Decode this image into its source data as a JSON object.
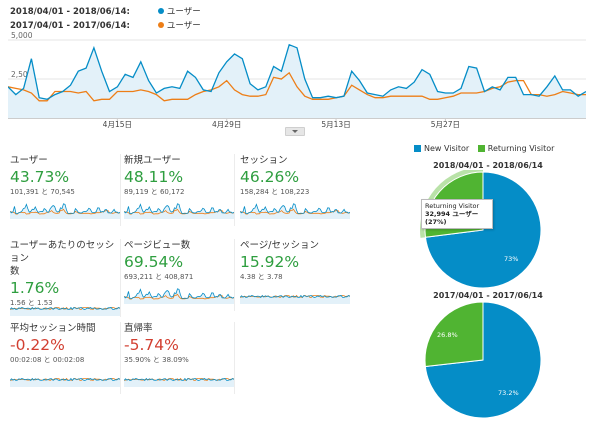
{
  "colors": {
    "current": "#058dc7",
    "previous": "#ed7e17",
    "returning": "#50b432",
    "pct_up": "#2e9e3f",
    "pct_down": "#d23f31"
  },
  "legend": [
    {
      "range": "2018/04/01 - 2018/06/14:",
      "label": "ユーザー",
      "color": "#058dc7"
    },
    {
      "range": "2017/04/01 - 2017/06/14:",
      "label": "ユーザー",
      "color": "#ed7e17"
    }
  ],
  "chart_data": [
    {
      "type": "line",
      "yticks": [
        "5,000",
        "2,500"
      ],
      "ylim": [
        0,
        5000
      ],
      "xticks": [
        "4月15日",
        "4月29日",
        "5月13日",
        "5月27日"
      ],
      "xtick_index": [
        14,
        28,
        42,
        56
      ],
      "series": [
        {
          "name": "2018/04/01 - 2018/06/14",
          "values": [
            2000,
            1500,
            1900,
            3800,
            1300,
            1200,
            1500,
            1700,
            2100,
            3000,
            3200,
            4500,
            3000,
            1700,
            2000,
            2800,
            2600,
            3600,
            2400,
            1600,
            1900,
            2000,
            1900,
            3000,
            2600,
            1800,
            1700,
            2900,
            3600,
            4100,
            3800,
            2200,
            1800,
            2000,
            3300,
            3000,
            4700,
            4500,
            2500,
            1300,
            1300,
            1400,
            1300,
            1400,
            3000,
            2400,
            1600,
            1500,
            1400,
            1800,
            2000,
            1900,
            2300,
            3100,
            2800,
            1700,
            1600,
            1600,
            1900,
            3300,
            3200,
            1700,
            2000,
            1800,
            2600,
            2600,
            1500,
            1500,
            1400,
            2000,
            2700,
            1800,
            1800,
            1400,
            1700
          ]
        },
        {
          "name": "2017/04/01 - 2017/06/14",
          "values": [
            2000,
            1900,
            1800,
            1600,
            1100,
            1100,
            1700,
            1700,
            1700,
            1600,
            1700,
            1100,
            1200,
            1200,
            1700,
            1700,
            1700,
            1800,
            1700,
            1500,
            1100,
            1200,
            1200,
            1200,
            1500,
            1700,
            1800,
            2000,
            2400,
            1800,
            1500,
            1400,
            1400,
            1500,
            2600,
            2500,
            2900,
            2000,
            1400,
            1200,
            1200,
            1200,
            1300,
            1400,
            2100,
            1800,
            1500,
            1300,
            1300,
            1400,
            1400,
            1400,
            1400,
            1400,
            1200,
            1200,
            1300,
            1400,
            1600,
            1600,
            1600,
            1700,
            1900,
            2000,
            2300,
            2400,
            2400,
            1500,
            1500,
            1400,
            1500,
            1700,
            1600,
            1500,
            1500
          ]
        }
      ]
    },
    {
      "type": "pie",
      "title": "2018/04/01 - 2018/06/14",
      "slices": [
        {
          "name": "New Visitor",
          "value": 73,
          "label": "73%"
        },
        {
          "name": "Returning Visitor",
          "value": 27,
          "label": ""
        }
      ]
    },
    {
      "type": "pie",
      "title": "2017/04/01 - 2017/06/14",
      "slices": [
        {
          "name": "New Visitor",
          "value": 73.2,
          "label": "73.2%"
        },
        {
          "name": "Returning Visitor",
          "value": 26.8,
          "label": "26.8%"
        }
      ]
    }
  ],
  "metrics": [
    {
      "name": "ユーザー",
      "pct": "43.73%",
      "trend": "up",
      "cmp": "101,391 と 70,545"
    },
    {
      "name": "新規ユーザー",
      "pct": "48.11%",
      "trend": "up",
      "cmp": "89,119 と 60,172"
    },
    {
      "name": "セッション",
      "pct": "46.26%",
      "trend": "up",
      "cmp": "158,284 と 108,223"
    },
    {
      "name": "ユーザーあたりのセッション\n数",
      "pct": "1.76%",
      "trend": "up",
      "cmp": "1.56 と 1.53"
    },
    {
      "name": "ページビュー数",
      "pct": "69.54%",
      "trend": "up",
      "cmp": "693,211 と 408,871"
    },
    {
      "name": "ページ/セッション",
      "pct": "15.92%",
      "trend": "up",
      "cmp": "4.38 と 3.78"
    },
    {
      "name": "平均セッション時間",
      "pct": "-0.22%",
      "trend": "down",
      "cmp": "00:02:08 と 00:02:08"
    },
    {
      "name": "直帰率",
      "pct": "-5.74%",
      "trend": "down",
      "cmp": "35.90% と 38.09%"
    }
  ],
  "pie_legend": [
    "New Visitor",
    "Returning Visitor"
  ],
  "tooltip": {
    "line1": "Returning Visitor",
    "line2": "32,994 ユーザー (27%)"
  }
}
